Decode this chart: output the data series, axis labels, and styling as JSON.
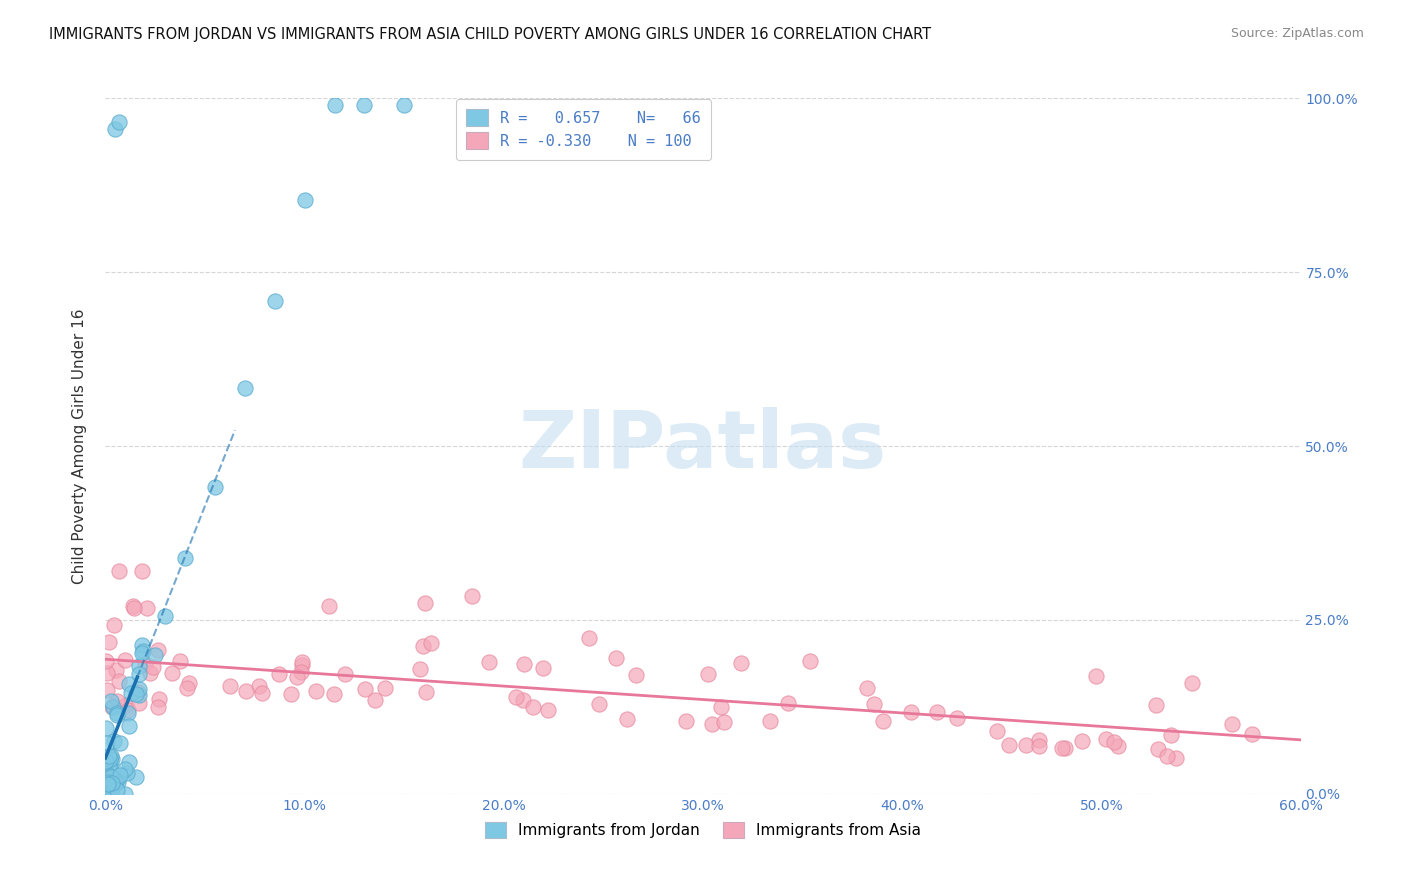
{
  "title": "IMMIGRANTS FROM JORDAN VS IMMIGRANTS FROM ASIA CHILD POVERTY AMONG GIRLS UNDER 16 CORRELATION CHART",
  "source": "Source: ZipAtlas.com",
  "ylabel": "Child Poverty Among Girls Under 16",
  "legend_jordan_r": "0.657",
  "legend_jordan_n": "66",
  "legend_asia_r": "-0.330",
  "legend_asia_n": "100",
  "jordan_color": "#7ec8e3",
  "jordan_edge_color": "#5aabcf",
  "asia_color": "#f4a7b9",
  "asia_edge_color": "#e8889e",
  "jordan_line_color": "#1a6faf",
  "asia_line_color": "#e8789a",
  "xlim": [
    0.0,
    0.6
  ],
  "ylim": [
    0.0,
    1.0
  ],
  "y_ticks": [
    0.0,
    0.25,
    0.5,
    0.75,
    1.0
  ],
  "grid_color": "#cccccc",
  "background_color": "#ffffff",
  "title_fontsize": 10.5,
  "source_fontsize": 9,
  "watermark": "ZIPatlas",
  "watermark_color": "#c5dff0"
}
